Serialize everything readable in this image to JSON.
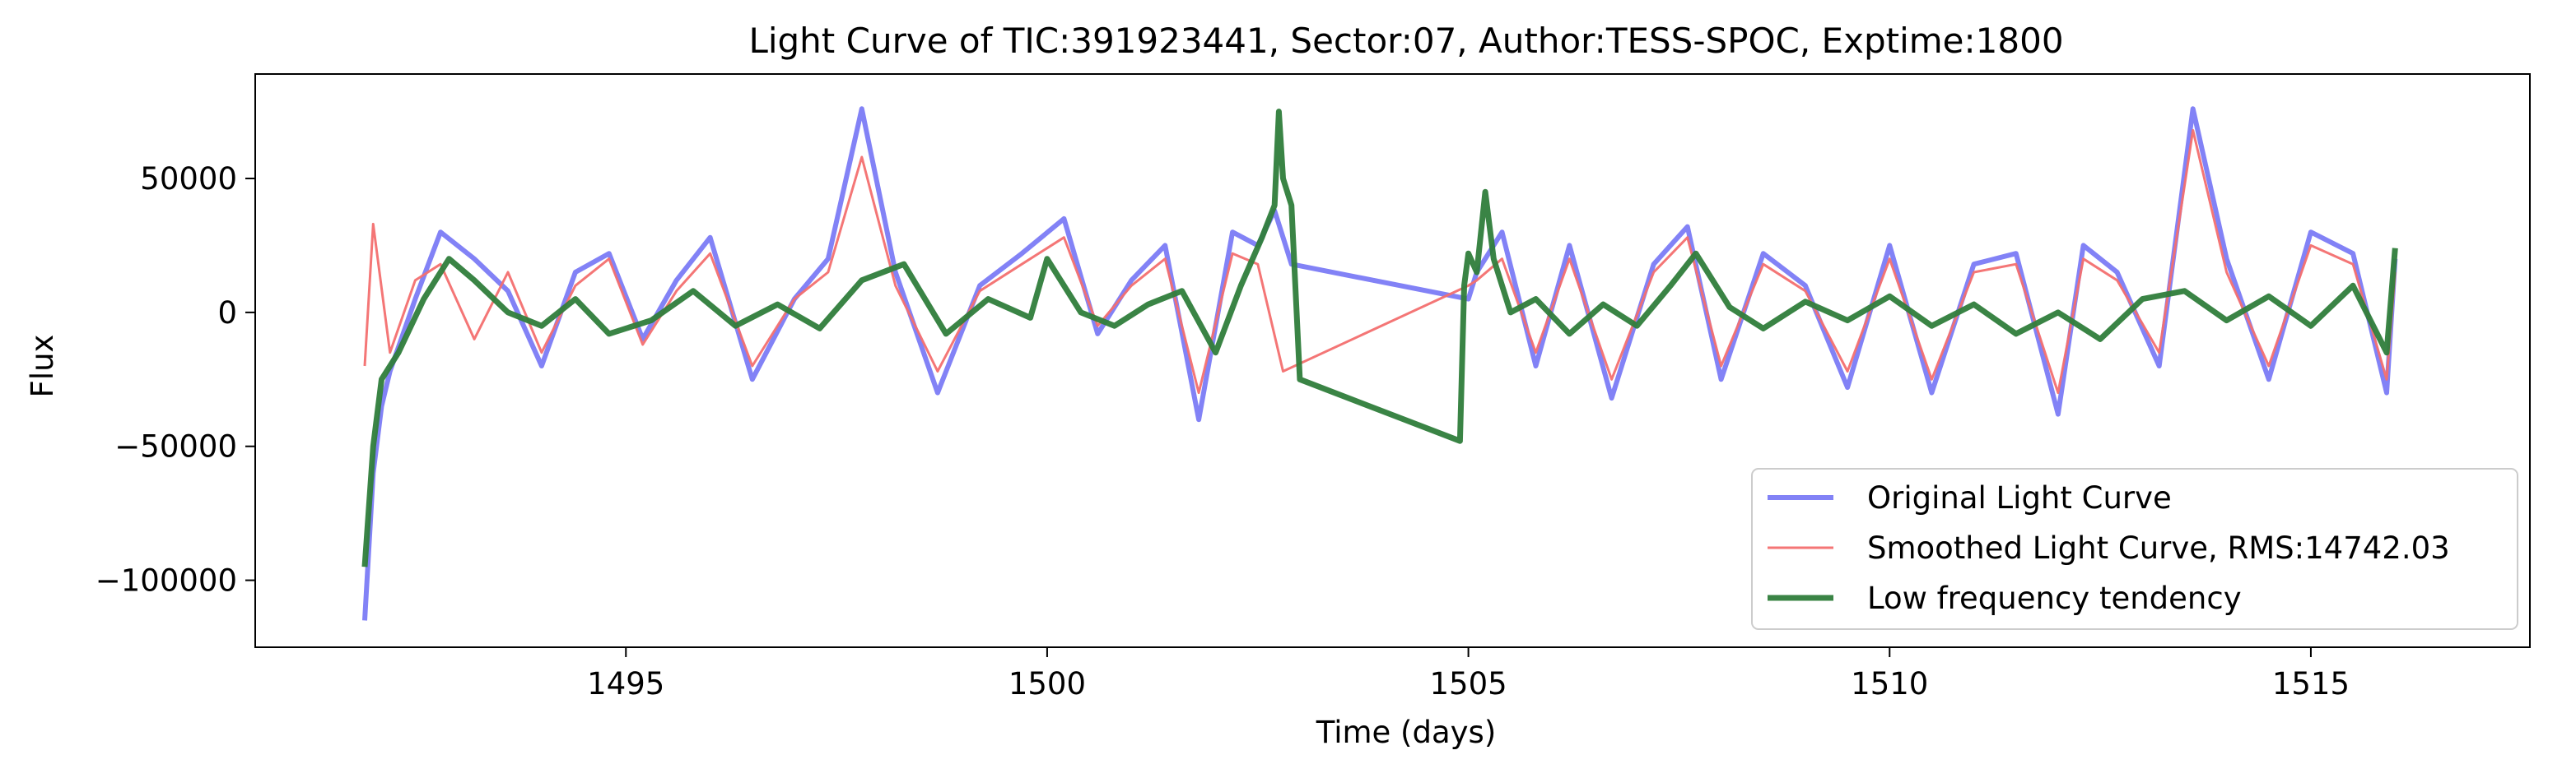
{
  "chart_data": {
    "type": "line",
    "title": "Light Curve of TIC:391923441, Sector:07, Author:TESS-SPOC, Exptime:1800",
    "xlabel": "Time (days)",
    "ylabel": "Flux",
    "xlim": [
      1490.6,
      1517.6
    ],
    "ylim": [
      -125000,
      89000
    ],
    "xticks": [
      1495,
      1500,
      1505,
      1510,
      1515
    ],
    "xtick_labels": [
      "1495",
      "1500",
      "1505",
      "1510",
      "1515"
    ],
    "yticks": [
      -100000,
      -50000,
      0,
      50000
    ],
    "ytick_labels": [
      "−100000",
      "−50000",
      "0",
      "50000"
    ],
    "grid": false,
    "legend_position": "lower-right",
    "series": [
      {
        "name": "Original Light Curve",
        "color": "#7b7bf5",
        "x": [
          1491.9,
          1492.0,
          1492.1,
          1492.2,
          1492.5,
          1492.8,
          1493.2,
          1493.6,
          1494.0,
          1494.4,
          1494.8,
          1495.2,
          1495.6,
          1496.0,
          1496.5,
          1497.0,
          1497.4,
          1497.8,
          1498.2,
          1498.7,
          1499.2,
          1499.7,
          1500.2,
          1500.6,
          1501.0,
          1501.4,
          1501.8,
          1502.2,
          1502.5,
          1502.7,
          1502.8,
          1502.9,
          1505.0,
          1505.1,
          1505.4,
          1505.8,
          1506.2,
          1506.7,
          1507.2,
          1507.6,
          1508.0,
          1508.5,
          1509.0,
          1509.5,
          1510.0,
          1510.5,
          1511.0,
          1511.5,
          1512.0,
          1512.3,
          1512.7,
          1513.2,
          1513.6,
          1514.0,
          1514.5,
          1515.0,
          1515.5,
          1515.9,
          1516.0
        ],
        "y": [
          -115000,
          -60000,
          -35000,
          -22000,
          5000,
          30000,
          20000,
          8000,
          -20000,
          15000,
          22000,
          -10000,
          12000,
          28000,
          -25000,
          5000,
          20000,
          76000,
          15000,
          -30000,
          10000,
          22000,
          35000,
          -8000,
          12000,
          25000,
          -40000,
          30000,
          25000,
          38000,
          28000,
          18000,
          5000,
          15000,
          30000,
          -20000,
          25000,
          -32000,
          18000,
          32000,
          -25000,
          22000,
          10000,
          -28000,
          25000,
          -30000,
          18000,
          22000,
          -38000,
          25000,
          15000,
          -20000,
          76000,
          20000,
          -25000,
          30000,
          22000,
          -30000,
          20000
        ]
      },
      {
        "name": "Smoothed Light Curve, RMS:14742.03",
        "color": "#f36f6f",
        "x": [
          1491.9,
          1492.0,
          1492.2,
          1492.5,
          1492.8,
          1493.2,
          1493.6,
          1494.0,
          1494.4,
          1494.8,
          1495.2,
          1495.6,
          1496.0,
          1496.5,
          1497.0,
          1497.4,
          1497.8,
          1498.2,
          1498.7,
          1499.2,
          1499.7,
          1500.2,
          1500.6,
          1501.0,
          1501.4,
          1501.8,
          1502.2,
          1502.5,
          1502.8,
          1505.0,
          1505.1,
          1505.4,
          1505.8,
          1506.2,
          1506.7,
          1507.2,
          1507.6,
          1508.0,
          1508.5,
          1509.0,
          1509.5,
          1510.0,
          1510.5,
          1511.0,
          1511.5,
          1512.0,
          1512.3,
          1512.7,
          1513.2,
          1513.6,
          1514.0,
          1514.5,
          1515.0,
          1515.5,
          1515.9,
          1516.0
        ],
        "y": [
          -20000,
          33000,
          -15000,
          12000,
          18000,
          -10000,
          15000,
          -15000,
          10000,
          20000,
          -12000,
          8000,
          22000,
          -20000,
          5000,
          15000,
          58000,
          10000,
          -22000,
          8000,
          18000,
          28000,
          -5000,
          10000,
          20000,
          -30000,
          22000,
          18000,
          -22000,
          10000,
          12000,
          20000,
          -15000,
          20000,
          -25000,
          15000,
          28000,
          -20000,
          18000,
          8000,
          -22000,
          20000,
          -25000,
          15000,
          18000,
          -30000,
          20000,
          12000,
          -15000,
          68000,
          15000,
          -20000,
          25000,
          18000,
          -25000,
          15000
        ]
      },
      {
        "name": "Low frequency tendency",
        "color": "#2f7d3b",
        "x": [
          1491.9,
          1492.0,
          1492.1,
          1492.3,
          1492.6,
          1492.9,
          1493.2,
          1493.6,
          1494.0,
          1494.4,
          1494.8,
          1495.3,
          1495.8,
          1496.3,
          1496.8,
          1497.3,
          1497.8,
          1498.3,
          1498.8,
          1499.3,
          1499.8,
          1500.0,
          1500.4,
          1500.8,
          1501.2,
          1501.6,
          1502.0,
          1502.3,
          1502.55,
          1502.7,
          1502.75,
          1502.8,
          1502.9,
          1503.0,
          1504.9,
          1504.95,
          1505.0,
          1505.1,
          1505.2,
          1505.3,
          1505.5,
          1505.8,
          1506.2,
          1506.6,
          1507.0,
          1507.4,
          1507.7,
          1508.1,
          1508.5,
          1509.0,
          1509.5,
          1510.0,
          1510.5,
          1511.0,
          1511.5,
          1512.0,
          1512.5,
          1513.0,
          1513.5,
          1514.0,
          1514.5,
          1515.0,
          1515.5,
          1515.9,
          1516.0
        ],
        "y": [
          -95000,
          -50000,
          -25000,
          -15000,
          5000,
          20000,
          12000,
          0,
          -5000,
          5000,
          -8000,
          -3000,
          8000,
          -5000,
          3000,
          -6000,
          12000,
          18000,
          -8000,
          5000,
          -2000,
          20000,
          0,
          -5000,
          3000,
          8000,
          -15000,
          10000,
          28000,
          40000,
          75000,
          50000,
          40000,
          -25000,
          -48000,
          10000,
          22000,
          15000,
          45000,
          20000,
          0,
          5000,
          -8000,
          3000,
          -5000,
          10000,
          22000,
          2000,
          -6000,
          4000,
          -3000,
          6000,
          -5000,
          3000,
          -8000,
          0,
          -10000,
          5000,
          8000,
          -3000,
          6000,
          -5000,
          10000,
          -15000,
          24000
        ]
      }
    ]
  }
}
